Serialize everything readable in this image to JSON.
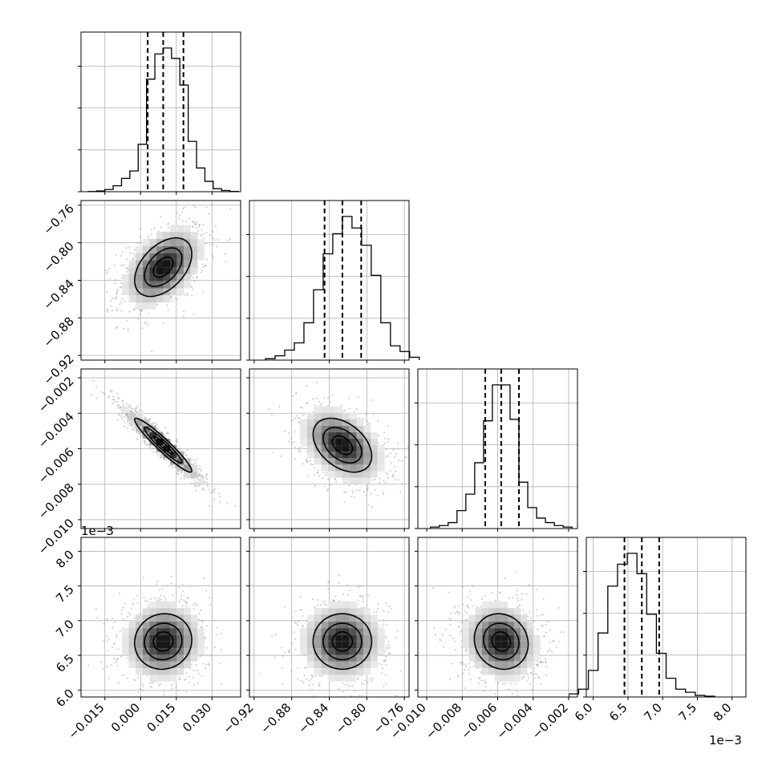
{
  "chart_data": {
    "type": "scatter",
    "figure_kind": "corner-plot",
    "title": "",
    "parameters": 4,
    "offset_labels": {
      "row3_y": "1e−3",
      "col3_x": "1e−3"
    },
    "ranges": [
      [
        -0.025,
        0.042
      ],
      [
        -0.925,
        -0.755
      ],
      [
        -0.0105,
        -0.0015
      ],
      [
        0.0059,
        0.0082
      ]
    ],
    "x_ticks": [
      {
        "values": [
          -0.015,
          0.0,
          0.015,
          0.03
        ],
        "labels": [
          "−0.015",
          "0.000",
          "0.015",
          "0.030"
        ]
      },
      {
        "values": [
          -0.92,
          -0.88,
          -0.84,
          -0.8,
          -0.76
        ],
        "labels": [
          "−0.92",
          "−0.88",
          "−0.84",
          "−0.80",
          "−0.76"
        ]
      },
      {
        "values": [
          -0.01,
          -0.008,
          -0.006,
          -0.004,
          -0.002
        ],
        "labels": [
          "−0.010",
          "−0.008",
          "−0.006",
          "−0.004",
          "−0.002"
        ]
      },
      {
        "values": [
          0.006,
          0.0065,
          0.007,
          0.0075,
          0.008
        ],
        "labels": [
          "6.0",
          "6.5",
          "7.0",
          "7.5",
          "8.0"
        ]
      }
    ],
    "y_ticks": [
      null,
      {
        "values": [
          -0.76,
          -0.8,
          -0.84,
          -0.88,
          -0.92
        ],
        "labels": [
          "−0.76",
          "−0.80",
          "−0.84",
          "−0.88",
          "−0.92"
        ]
      },
      {
        "values": [
          -0.002,
          -0.004,
          -0.006,
          -0.008,
          -0.01
        ],
        "labels": [
          "−0.002",
          "−0.004",
          "−0.006",
          "−0.008",
          "−0.010"
        ]
      },
      {
        "values": [
          0.008,
          0.0075,
          0.007,
          0.0065,
          0.006
        ],
        "labels": [
          "8.0",
          "7.5",
          "7.0",
          "6.5",
          "6.0"
        ]
      }
    ],
    "quantiles": [
      [
        0.003,
        0.0095,
        0.018
      ],
      [
        -0.845,
        -0.826,
        -0.806
      ],
      [
        -0.0067,
        -0.0058,
        -0.0048
      ],
      [
        0.00645,
        0.0067,
        0.00695
      ]
    ],
    "histograms": [
      [
        0.001,
        0.005,
        0.015,
        0.04,
        0.09,
        0.14,
        0.32,
        0.76,
        0.93,
        0.97,
        0.9,
        0.72,
        0.34,
        0.16,
        0.07,
        0.02,
        0.008,
        0.002
      ],
      [
        0.01,
        0.03,
        0.07,
        0.12,
        0.26,
        0.49,
        0.74,
        0.88,
        1.0,
        0.92,
        0.8,
        0.59,
        0.26,
        0.1,
        0.06,
        0.02
      ],
      [
        0.01,
        0.02,
        0.04,
        0.12,
        0.23,
        0.44,
        0.72,
        0.96,
        0.96,
        0.73,
        0.31,
        0.14,
        0.07,
        0.04,
        0.02,
        0.01
      ],
      [
        0.02,
        0.05,
        0.17,
        0.41,
        0.71,
        0.85,
        0.92,
        0.79,
        0.53,
        0.28,
        0.12,
        0.05,
        0.03,
        0.01,
        0.005
      ]
    ],
    "correlations": [
      [
        1,
        0.45,
        -0.95,
        0.05
      ],
      [
        0.45,
        1,
        -0.4,
        0.0
      ],
      [
        -0.95,
        -0.4,
        1,
        -0.1
      ],
      [
        0.05,
        0.0,
        -0.1,
        1
      ]
    ]
  }
}
